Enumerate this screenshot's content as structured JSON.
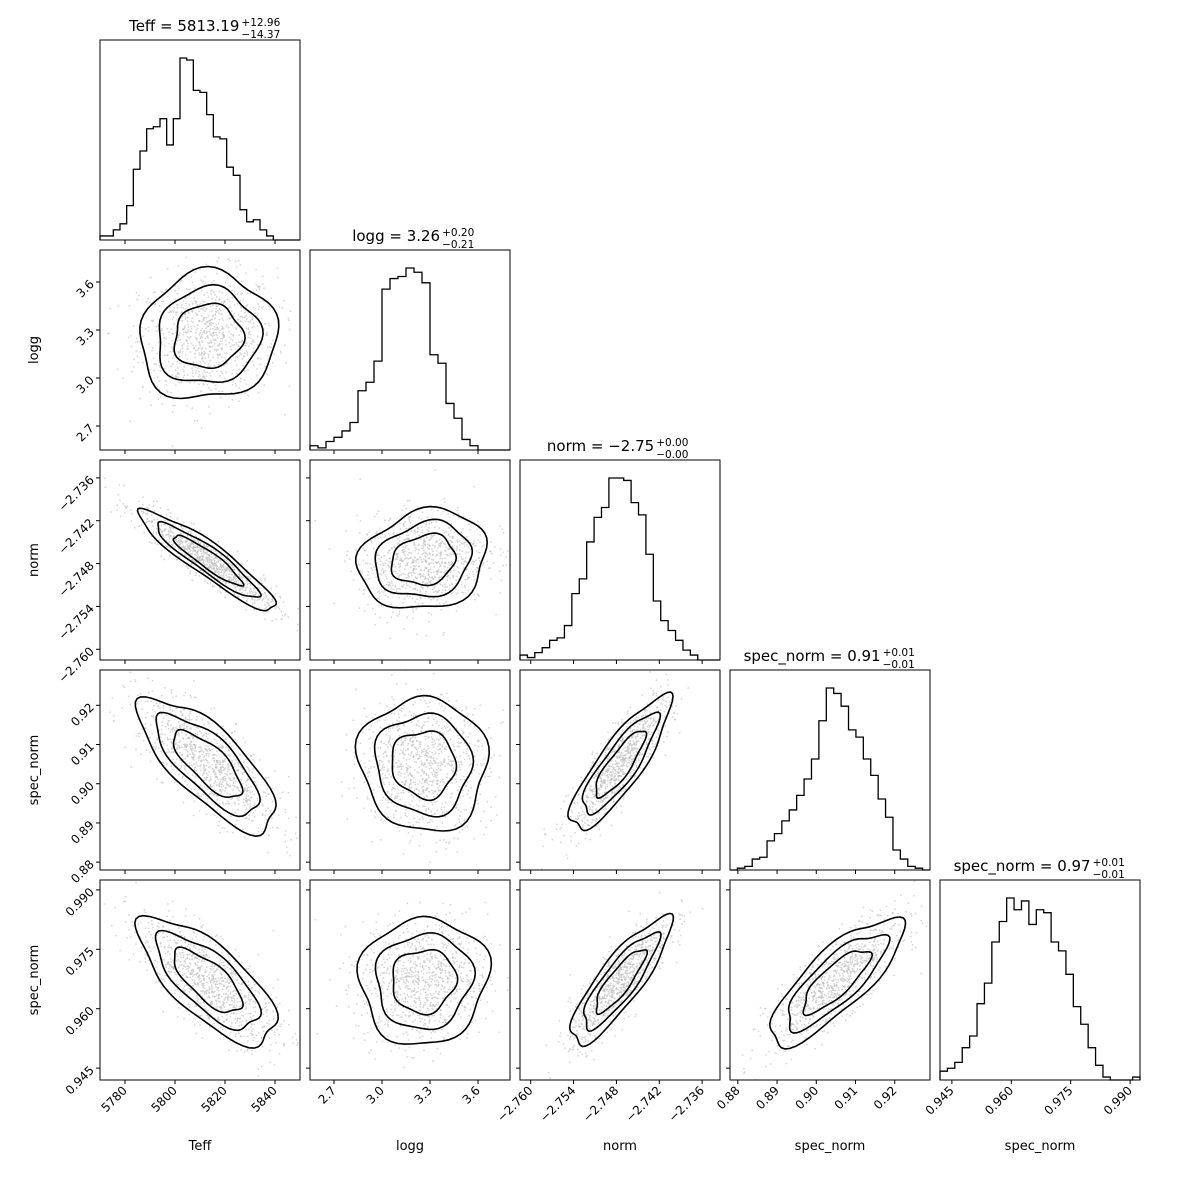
{
  "chart_data": {
    "type": "corner",
    "parameters": [
      {
        "label": "Teff",
        "title_main": "Teff = 5813.19",
        "title_plus": "+12.96",
        "title_minus": "−14.37",
        "range": [
          5770,
          5850
        ],
        "ticks": [
          5780,
          5800,
          5820,
          5840
        ],
        "tick_labels": [
          "5780",
          "5800",
          "5820",
          "5840"
        ],
        "hist_counts": [
          2,
          2,
          5,
          8,
          17,
          35,
          44,
          55,
          56,
          60,
          47,
          60,
          90,
          89,
          74,
          73,
          62,
          51,
          50,
          36,
          32,
          15,
          9,
          10,
          5,
          2,
          0,
          0,
          0,
          0
        ],
        "median": 5813.19,
        "sigma": 13.7
      },
      {
        "label": "logg",
        "title_main": "logg = 3.26",
        "title_plus": "+0.20",
        "title_minus": "−0.21",
        "range": [
          2.55,
          3.8
        ],
        "ticks": [
          2.7,
          3.0,
          3.3,
          3.6
        ],
        "tick_labels": [
          "2.7",
          "3.0",
          "3.3",
          "3.6"
        ],
        "hist_counts": [
          2,
          1,
          4,
          6,
          9,
          13,
          28,
          32,
          42,
          76,
          81,
          82,
          86,
          84,
          79,
          45,
          41,
          22,
          15,
          5,
          2,
          0,
          0,
          0,
          0
        ],
        "median": 3.26,
        "sigma": 0.2
      },
      {
        "label": "norm",
        "title_main": "norm = −2.75",
        "title_plus": "+0.00",
        "title_minus": "−0.00",
        "range": [
          -2.7615,
          -2.7335
        ],
        "ticks": [
          -2.76,
          -2.754,
          -2.748,
          -2.742,
          -2.736
        ],
        "tick_labels": [
          "−2.760",
          "−2.754",
          "−2.748",
          "−2.742",
          "−2.736"
        ],
        "hist_counts": [
          2,
          1,
          3,
          5,
          8,
          9,
          14,
          27,
          33,
          48,
          58,
          62,
          74,
          74,
          73,
          64,
          59,
          43,
          24,
          16,
          12,
          8,
          4,
          2,
          0,
          0,
          0
        ],
        "median": -2.7475,
        "sigma": 0.0035
      },
      {
        "label": "spec_norm",
        "title_main": "spec_norm = 0.91",
        "title_plus": "+0.01",
        "title_minus": "−0.01",
        "range": [
          0.878,
          0.929
        ],
        "ticks": [
          0.88,
          0.89,
          0.9,
          0.91,
          0.92
        ],
        "tick_labels": [
          "0.88",
          "0.89",
          "0.90",
          "0.91",
          "0.92"
        ],
        "hist_counts": [
          0,
          1,
          2,
          6,
          7,
          16,
          20,
          27,
          33,
          41,
          50,
          61,
          82,
          100,
          97,
          90,
          77,
          73,
          61,
          52,
          39,
          29,
          11,
          6,
          2,
          1,
          0
        ],
        "median": 0.905,
        "sigma": 0.0085
      },
      {
        "label": "spec_norm",
        "title_main": "spec_norm = 0.97",
        "title_plus": "+0.01",
        "title_minus": "−0.01",
        "range": [
          0.942,
          0.9925
        ],
        "ticks": [
          0.945,
          0.96,
          0.975,
          0.99
        ],
        "tick_labels": [
          "0.945",
          "0.960",
          "0.975",
          "0.990"
        ],
        "hist_counts": [
          3,
          4,
          6,
          11,
          15,
          26,
          33,
          47,
          54,
          62,
          58,
          61,
          53,
          58,
          57,
          47,
          44,
          36,
          25,
          19,
          11,
          5,
          1,
          0,
          0,
          0,
          1
        ],
        "median": 0.967,
        "sigma": 0.008
      }
    ],
    "pairs": [
      {
        "x": 0,
        "y": 1,
        "corr": 0.05
      },
      {
        "x": 0,
        "y": 2,
        "corr": -0.92
      },
      {
        "x": 1,
        "y": 2,
        "corr": 0.15
      },
      {
        "x": 0,
        "y": 3,
        "corr": -0.75
      },
      {
        "x": 1,
        "y": 3,
        "corr": -0.05
      },
      {
        "x": 2,
        "y": 3,
        "corr": 0.85
      },
      {
        "x": 0,
        "y": 4,
        "corr": -0.72
      },
      {
        "x": 1,
        "y": 4,
        "corr": 0.05
      },
      {
        "x": 2,
        "y": 4,
        "corr": 0.85
      },
      {
        "x": 3,
        "y": 4,
        "corr": 0.8
      }
    ],
    "grid": false,
    "legend": "none"
  }
}
